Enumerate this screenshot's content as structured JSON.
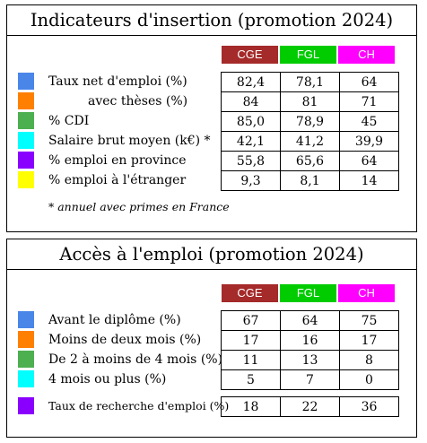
{
  "columns": [
    {
      "label": "CGE",
      "color": "#A52A2A"
    },
    {
      "label": "FGL",
      "color": "#00CC00"
    },
    {
      "label": "CH",
      "color": "#FF00FF"
    }
  ],
  "panel1": {
    "title": "Indicateurs d'insertion (promotion 2024)",
    "rows": [
      {
        "label": "Taux net d'emploi (%)",
        "color": "#4A86E8",
        "values": [
          "82,4",
          "78,1",
          "64"
        ]
      },
      {
        "label": "avec thèses (%)",
        "color": "#FF8000",
        "values": [
          "84",
          "81",
          "71"
        ]
      },
      {
        "label": "% CDI",
        "color": "#4CAF50",
        "values": [
          "85,0",
          "78,9",
          "45"
        ]
      },
      {
        "label": "Salaire brut moyen (k€) *",
        "color": "#00FFFF",
        "values": [
          "42,1",
          "41,2",
          "39,9"
        ]
      },
      {
        "label": "% emploi en province",
        "color": "#8A00FF",
        "values": [
          "55,8",
          "65,6",
          "64"
        ]
      },
      {
        "label": "% emploi à l'étranger",
        "color": "#FFFF00",
        "values": [
          "9,3",
          "8,1",
          "14"
        ]
      }
    ],
    "note": "* annuel avec primes en France"
  },
  "panel2": {
    "title": "Accès à l'emploi (promotion 2024)",
    "rows": [
      {
        "label": "Avant le diplôme (%)",
        "color": "#4A86E8",
        "values": [
          "67",
          "64",
          "75"
        ]
      },
      {
        "label": "Moins de deux mois (%)",
        "color": "#FF8000",
        "values": [
          "17",
          "16",
          "17"
        ]
      },
      {
        "label": "De 2 à moins de 4 mois (%)",
        "color": "#4CAF50",
        "values": [
          "11",
          "13",
          "8"
        ]
      },
      {
        "label": "4 mois ou plus (%)",
        "color": "#00FFFF",
        "values": [
          "5",
          "7",
          "0"
        ]
      }
    ],
    "extra_row": {
      "label": "Taux de recherche d'emploi (%)",
      "color": "#8A00FF",
      "values": [
        "18",
        "22",
        "36"
      ]
    }
  }
}
